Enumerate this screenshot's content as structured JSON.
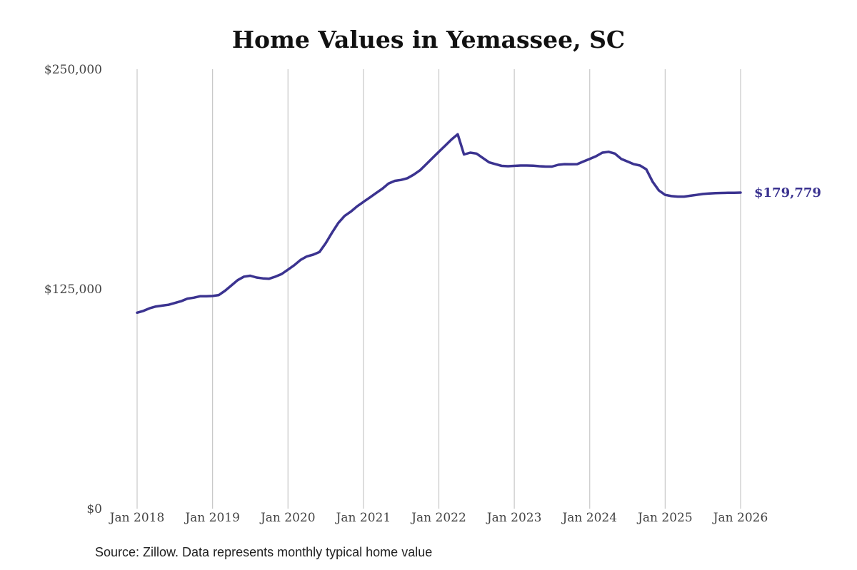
{
  "chart_data": {
    "type": "line",
    "title": "Home Values in Yemassee, SC",
    "xlabel": "",
    "ylabel": "",
    "x_ticks": [
      "Jan 2018",
      "Jan 2019",
      "Jan 2020",
      "Jan 2021",
      "Jan 2022",
      "Jan 2023",
      "Jan 2024",
      "Jan 2025",
      "Jan 2026"
    ],
    "y_ticks": [
      "$0",
      "$125,000",
      "$250,000"
    ],
    "ylim": [
      0,
      250000
    ],
    "xlim": [
      "2018-01",
      "2026-01"
    ],
    "grid": "vertical",
    "color": "#3b3390",
    "end_label": "$179,779",
    "series": [
      {
        "x": [
          "2018-01",
          "2018-02",
          "2018-03",
          "2018-04",
          "2018-05",
          "2018-06",
          "2018-07",
          "2018-08",
          "2018-09",
          "2018-10",
          "2018-11",
          "2018-12",
          "2019-01",
          "2019-02",
          "2019-03",
          "2019-04",
          "2019-05",
          "2019-06",
          "2019-07",
          "2019-08",
          "2019-09",
          "2019-10",
          "2019-11",
          "2019-12",
          "2020-01",
          "2020-02",
          "2020-03",
          "2020-04",
          "2020-05",
          "2020-06",
          "2020-07",
          "2020-08",
          "2020-09",
          "2020-10",
          "2020-11",
          "2020-12",
          "2021-01",
          "2021-02",
          "2021-03",
          "2021-04",
          "2021-05",
          "2021-06",
          "2021-07",
          "2021-08",
          "2021-09",
          "2021-10",
          "2021-11",
          "2021-12",
          "2022-01",
          "2022-02",
          "2022-03",
          "2022-04",
          "2022-05",
          "2022-06",
          "2022-07",
          "2022-08",
          "2022-09",
          "2022-10",
          "2022-11",
          "2022-12",
          "2023-01",
          "2023-02",
          "2023-03",
          "2023-04",
          "2023-05",
          "2023-06",
          "2023-07",
          "2023-08",
          "2023-09",
          "2023-10",
          "2023-11",
          "2023-12",
          "2024-01",
          "2024-02",
          "2024-03",
          "2024-04",
          "2024-05",
          "2024-06",
          "2024-07",
          "2024-08",
          "2024-09",
          "2024-10",
          "2024-11",
          "2024-12",
          "2025-01",
          "2025-02",
          "2025-03",
          "2025-04",
          "2025-05",
          "2025-06",
          "2025-07",
          "2025-08",
          "2025-09",
          "2025-10",
          "2025-11",
          "2025-12",
          "2026-01"
        ],
        "values": [
          111500,
          112500,
          114000,
          115000,
          115500,
          116000,
          117000,
          118000,
          119500,
          120000,
          120800,
          120800,
          121000,
          121500,
          124000,
          127000,
          130000,
          132000,
          132500,
          131500,
          131000,
          130800,
          132000,
          133500,
          136000,
          138500,
          141500,
          143500,
          144500,
          146000,
          151000,
          157000,
          162500,
          166500,
          169000,
          172000,
          174500,
          177000,
          179500,
          182000,
          185000,
          186500,
          187000,
          188000,
          190000,
          192500,
          196000,
          199500,
          203000,
          206500,
          210000,
          213000,
          201500,
          202500,
          202000,
          199500,
          197000,
          196000,
          195000,
          194800,
          195000,
          195200,
          195200,
          195100,
          194800,
          194600,
          194600,
          195600,
          196000,
          195900,
          196000,
          197500,
          199000,
          200500,
          202500,
          203000,
          202000,
          199000,
          197500,
          196000,
          195200,
          193000,
          186000,
          181000,
          178500,
          177800,
          177500,
          177500,
          178000,
          178500,
          179000,
          179300,
          179500,
          179600,
          179650,
          179700,
          179779
        ]
      }
    ]
  },
  "source_note": "Source: Zillow. Data represents monthly typical home value"
}
